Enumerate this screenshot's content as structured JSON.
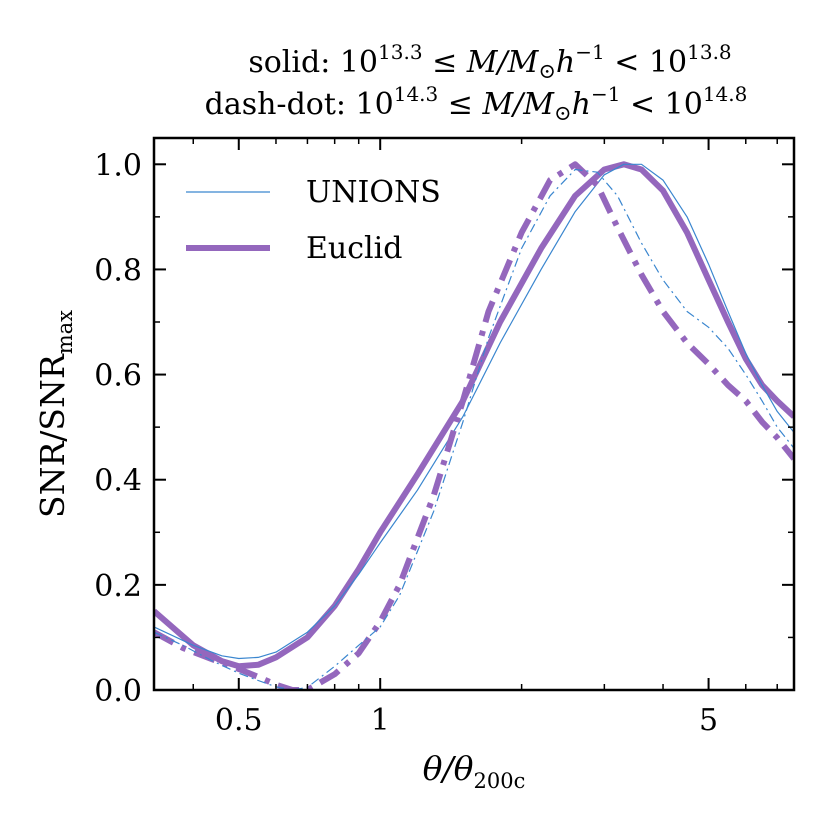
{
  "chart_data": {
    "type": "line",
    "title": {
      "line1": {
        "prefix": "solid:  10",
        "exp1": "13.3",
        "middle": " ≤ M/M",
        "sun": "⊙",
        "h": "h",
        "hexp": "−1",
        "lt": " < 10",
        "exp2": "13.8"
      },
      "line2": {
        "prefix": "dash-dot:  10",
        "exp1": "14.3",
        "middle": " ≤ M/M",
        "sun": "⊙",
        "h": "h",
        "hexp": "−1",
        "lt": " < 10",
        "exp2": "14.8"
      }
    },
    "xlabel": {
      "main": "θ/θ",
      "sub": "200c"
    },
    "ylabel": {
      "main": "SNR/SNR",
      "sub": "max"
    },
    "xscale": "log",
    "xlim": [
      0.33,
      7.6
    ],
    "ylim": [
      0.0,
      1.05
    ],
    "xticks": [
      {
        "value": 0.5,
        "label": "0.5"
      },
      {
        "value": 1,
        "label": "1"
      },
      {
        "value": 5,
        "label": "5"
      }
    ],
    "yticks": [
      {
        "value": 0.0,
        "label": "0.0"
      },
      {
        "value": 0.2,
        "label": "0.2"
      },
      {
        "value": 0.4,
        "label": "0.4"
      },
      {
        "value": 0.6,
        "label": "0.6"
      },
      {
        "value": 0.8,
        "label": "0.8"
      },
      {
        "value": 1.0,
        "label": "1.0"
      }
    ],
    "legend": {
      "position": "top-left",
      "entries": [
        {
          "label": "UNIONS",
          "color": "#3a86cf",
          "width": "thin"
        },
        {
          "label": "Euclid",
          "color": "#9467bd",
          "width": "thick"
        }
      ]
    },
    "series": [
      {
        "survey": "UNIONS",
        "style": "solid",
        "color": "#3a86cf",
        "x": [
          0.33,
          0.4,
          0.46,
          0.5,
          0.55,
          0.6,
          0.7,
          0.8,
          0.9,
          1.0,
          1.2,
          1.5,
          1.8,
          2.2,
          2.6,
          3.0,
          3.3,
          3.6,
          4.0,
          4.5,
          5.0,
          5.5,
          6.0,
          6.5,
          7.0,
          7.6
        ],
        "y": [
          0.12,
          0.085,
          0.065,
          0.06,
          0.062,
          0.072,
          0.11,
          0.16,
          0.22,
          0.28,
          0.38,
          0.52,
          0.66,
          0.8,
          0.91,
          0.98,
          1.0,
          1.0,
          0.97,
          0.9,
          0.81,
          0.72,
          0.64,
          0.58,
          0.53,
          0.49
        ]
      },
      {
        "survey": "Euclid",
        "style": "solid",
        "color": "#9467bd",
        "x": [
          0.33,
          0.4,
          0.46,
          0.5,
          0.55,
          0.6,
          0.7,
          0.8,
          0.9,
          1.0,
          1.2,
          1.5,
          1.8,
          2.2,
          2.6,
          3.0,
          3.3,
          3.6,
          4.0,
          4.5,
          5.0,
          5.5,
          6.0,
          6.5,
          7.0,
          7.6
        ],
        "y": [
          0.15,
          0.085,
          0.055,
          0.045,
          0.048,
          0.062,
          0.1,
          0.16,
          0.23,
          0.3,
          0.41,
          0.55,
          0.7,
          0.84,
          0.94,
          0.99,
          1.0,
          0.99,
          0.95,
          0.87,
          0.78,
          0.7,
          0.63,
          0.58,
          0.55,
          0.52
        ]
      },
      {
        "survey": "UNIONS",
        "style": "dash-dot",
        "color": "#3a86cf",
        "x": [
          0.33,
          0.38,
          0.44,
          0.5,
          0.55,
          0.6,
          0.65,
          0.7,
          0.8,
          0.9,
          1.0,
          1.1,
          1.3,
          1.5,
          1.7,
          2.0,
          2.3,
          2.6,
          2.9,
          3.2,
          3.6,
          4.0,
          4.5,
          5.0,
          5.5,
          6.0,
          6.5,
          7.0,
          7.6
        ],
        "y": [
          0.11,
          0.085,
          0.055,
          0.032,
          0.018,
          0.006,
          0.0,
          0.005,
          0.045,
          0.085,
          0.12,
          0.18,
          0.34,
          0.51,
          0.67,
          0.84,
          0.94,
          0.99,
          0.985,
          0.94,
          0.85,
          0.78,
          0.72,
          0.69,
          0.65,
          0.6,
          0.55,
          0.5,
          0.46
        ]
      },
      {
        "survey": "Euclid",
        "style": "dash-dot",
        "color": "#9467bd",
        "x": [
          0.33,
          0.38,
          0.44,
          0.5,
          0.55,
          0.6,
          0.65,
          0.7,
          0.8,
          0.9,
          1.0,
          1.1,
          1.3,
          1.5,
          1.7,
          2.0,
          2.3,
          2.6,
          2.9,
          3.2,
          3.6,
          4.0,
          4.5,
          5.0,
          5.5,
          6.0,
          6.5,
          7.0,
          7.6
        ],
        "y": [
          0.11,
          0.08,
          0.058,
          0.04,
          0.025,
          0.01,
          0.0,
          0.0,
          0.03,
          0.07,
          0.13,
          0.2,
          0.37,
          0.55,
          0.72,
          0.87,
          0.97,
          1.0,
          0.96,
          0.88,
          0.79,
          0.72,
          0.66,
          0.62,
          0.58,
          0.55,
          0.51,
          0.48,
          0.44
        ]
      }
    ]
  }
}
